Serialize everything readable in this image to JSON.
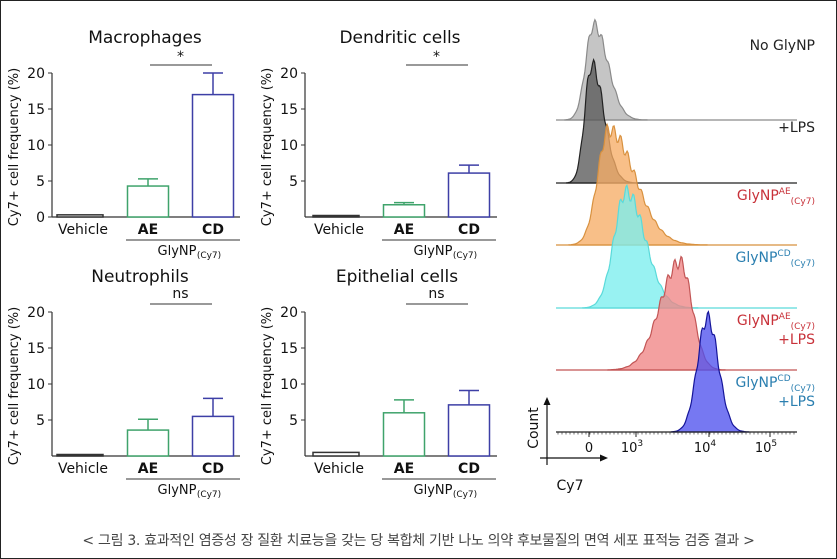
{
  "caption": "< 그림 3. 효과적인 염증성 장 질환 치료능을 갖는 당 복합체 기반 나노 의약 후보물질의 면역 세포 표적능 검증 결과 >",
  "colors": {
    "vehicle": "#333333",
    "AE": "#3fa36b",
    "CD": "#3d3fa6",
    "red_label": "#c8323a",
    "blue_label": "#2b7fb0"
  },
  "chart_data": [
    {
      "type": "bar",
      "title": "Macrophages",
      "ylabel": "Cy7+ cell frequency (%)",
      "ylim": [
        0,
        20
      ],
      "yticks": [
        "0",
        "5",
        "10",
        "15",
        "20"
      ],
      "categories": [
        "Vehicle",
        "AE",
        "CD"
      ],
      "values": [
        0.3,
        4.3,
        17.0
      ],
      "error_upper": [
        0.3,
        5.3,
        20.0
      ],
      "group_label": "GlyNP",
      "group_sub": "(Cy7)",
      "significance": "*"
    },
    {
      "type": "bar",
      "title": "Dendritic cells",
      "ylabel": "Cy7+ cell frequency (%)",
      "ylim": [
        0,
        20
      ],
      "yticks": [
        "5",
        "10",
        "15",
        "20"
      ],
      "categories": [
        "Vehicle",
        "AE",
        "CD"
      ],
      "values": [
        0.1,
        1.7,
        6.1
      ],
      "error_upper": [
        0.1,
        2.0,
        7.2
      ],
      "group_label": "GlyNP",
      "group_sub": "(Cy7)",
      "significance": "*"
    },
    {
      "type": "bar",
      "title": "Neutrophils",
      "ylabel": "Cy7+ cell frequency (%)",
      "ylim": [
        0,
        20
      ],
      "yticks": [
        "5",
        "10",
        "15",
        "20"
      ],
      "categories": [
        "Vehicle",
        "AE",
        "CD"
      ],
      "values": [
        0.0,
        3.6,
        5.5
      ],
      "error_upper": [
        0.0,
        5.1,
        8.0
      ],
      "group_label": "GlyNP",
      "group_sub": "(Cy7)",
      "significance": "ns"
    },
    {
      "type": "bar",
      "title": "Epithelial cells",
      "ylabel": "Cy7+ cell frequency (%)",
      "ylim": [
        0,
        20
      ],
      "yticks": [
        "5",
        "10",
        "15",
        "20"
      ],
      "categories": [
        "Vehicle",
        "AE",
        "CD"
      ],
      "values": [
        0.5,
        6.0,
        7.1
      ],
      "error_upper": [
        0.5,
        7.8,
        9.1
      ],
      "group_label": "GlyNP",
      "group_sub": "(Cy7)",
      "significance": "ns"
    },
    {
      "type": "area",
      "xlabel": "Cy7",
      "ylabel": "Count",
      "xticks": [
        {
          "value": 0,
          "label": "0",
          "sup": ""
        },
        {
          "value": 1000,
          "label": "10",
          "sup": "3"
        },
        {
          "value": 10000,
          "label": "10",
          "sup": "4"
        },
        {
          "value": 100000,
          "label": "10",
          "sup": "5"
        }
      ],
      "series": [
        {
          "label": "No GlyNP",
          "sup": "",
          "sub": "",
          "line2": "",
          "peak_cy7": 100,
          "label_color": "#222222",
          "fill": "#b5b5b5",
          "stroke": "#8a8a8a"
        },
        {
          "label": "+LPS",
          "sup": "",
          "sub": "",
          "line2": "",
          "peak_cy7": 60,
          "label_color": "#222222",
          "fill": "#5a5a5a",
          "stroke": "#222222"
        },
        {
          "label": "GlyNP",
          "sup": "AE",
          "sub": "(Cy7)",
          "line2": "",
          "peak_cy7": 420,
          "label_color": "#c8323a",
          "fill": "#f6ad66",
          "stroke": "#d8913f"
        },
        {
          "label": "GlyNP",
          "sup": "CD",
          "sub": "(Cy7)",
          "line2": "",
          "peak_cy7": 790,
          "label_color": "#2b7fb0",
          "fill": "#7beeee",
          "stroke": "#5adada"
        },
        {
          "label": "GlyNP",
          "sup": "AE",
          "sub": "(Cy7)",
          "line2": "+LPS",
          "peak_cy7": 4000,
          "label_color": "#c8323a",
          "fill": "#f08585",
          "stroke": "#c25555"
        },
        {
          "label": "GlyNP",
          "sup": "CD",
          "sub": "(Cy7)",
          "line2": "+LPS",
          "peak_cy7": 9500,
          "label_color": "#2b7fb0",
          "fill": "#4f52ee",
          "stroke": "#15159a"
        }
      ]
    }
  ]
}
